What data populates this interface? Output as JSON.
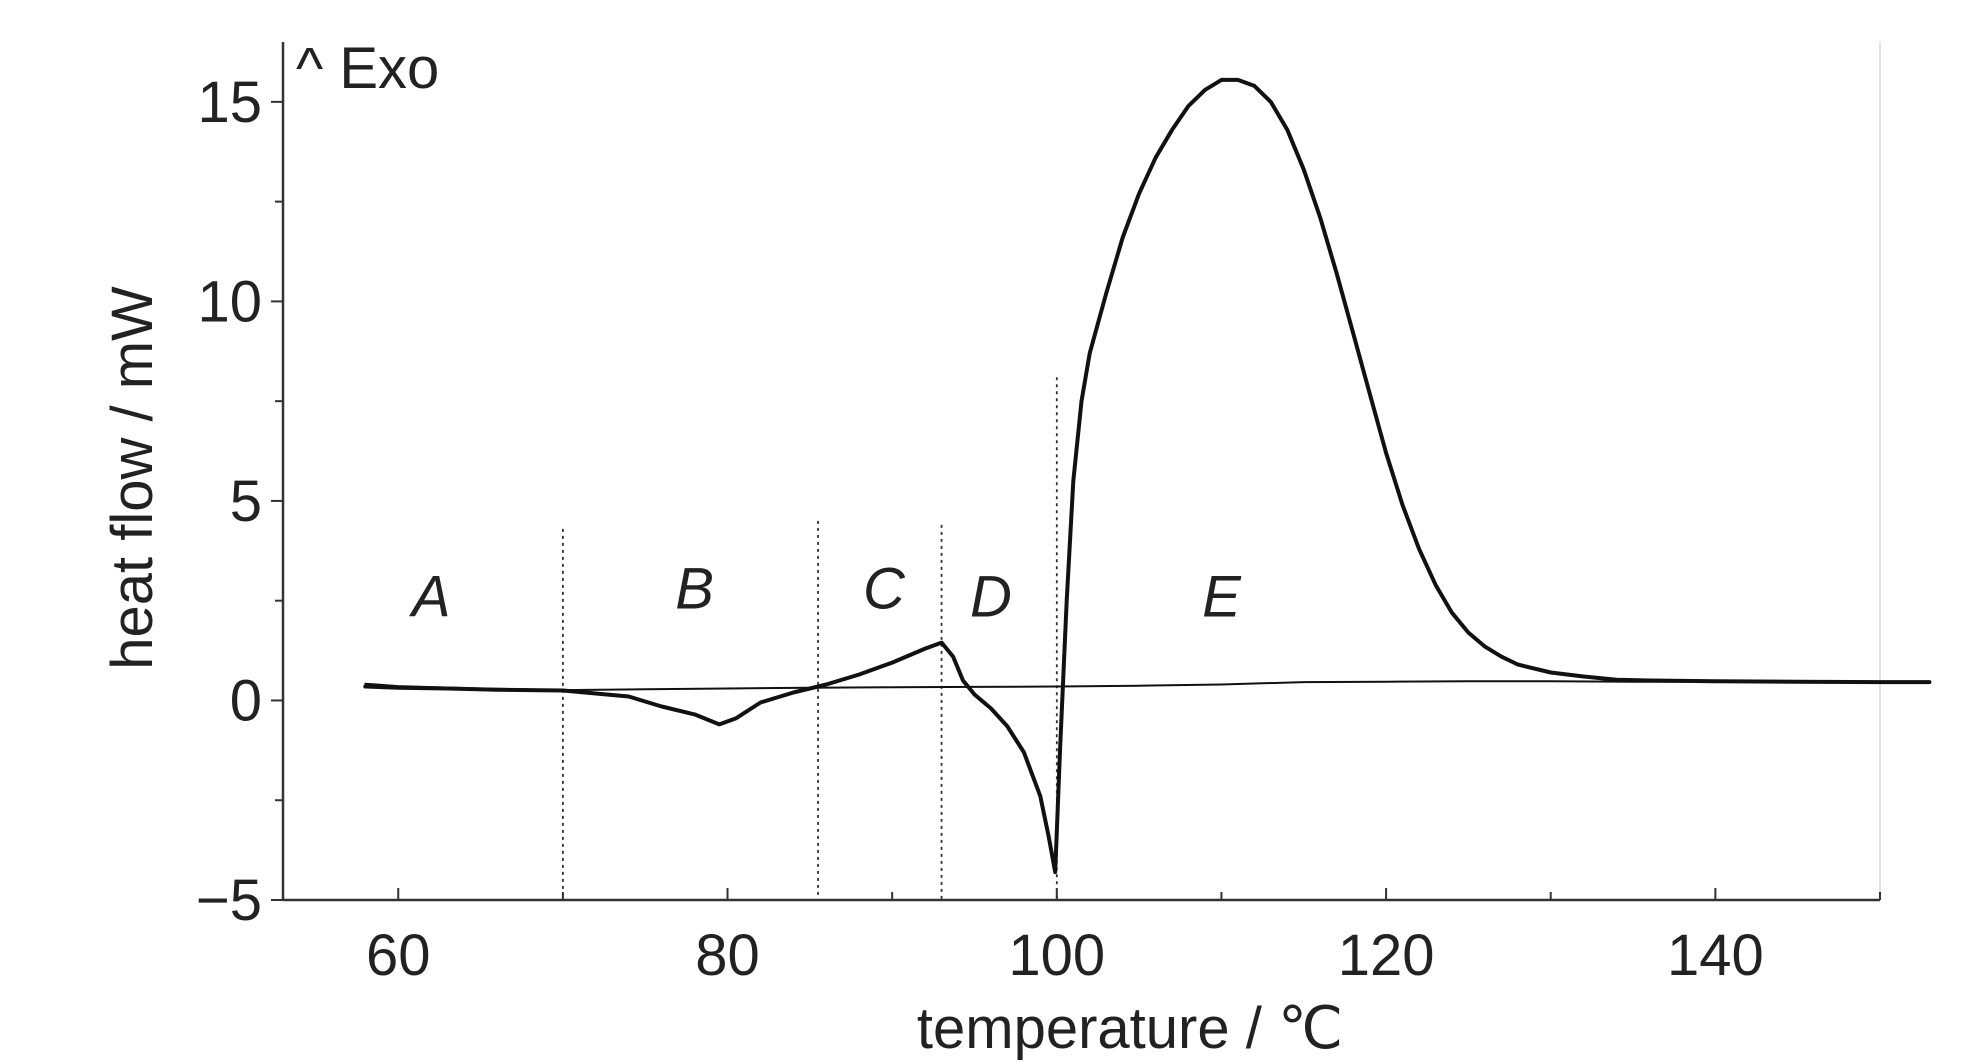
{
  "chart_data": {
    "type": "line",
    "xlabel": "temperature / ℃",
    "ylabel": "heat flow / mW",
    "xlim": [
      53,
      150
    ],
    "ylim": [
      -5,
      16.5
    ],
    "x_ticks": [
      60,
      80,
      100,
      120,
      140
    ],
    "y_ticks": [
      -5,
      0,
      5,
      10,
      15
    ],
    "y_tick_labels": [
      "−5",
      "0",
      "5",
      "10",
      "15"
    ],
    "annotation": "^ Exo",
    "grid": false,
    "series": [
      {
        "x": [
          58,
          60,
          63,
          66,
          70,
          74,
          76,
          78,
          79.5,
          80.5,
          82,
          84,
          86,
          88,
          90,
          92,
          93,
          93.7,
          94.3,
          95,
          96,
          97,
          98,
          99,
          99.5,
          99.9,
          100.2,
          100.6,
          101,
          101.5,
          102,
          103,
          104,
          105,
          106,
          107,
          108,
          109,
          110,
          111,
          112,
          113,
          114,
          115,
          116,
          117,
          118,
          119,
          120,
          121,
          122,
          123,
          124,
          125,
          126,
          127,
          128,
          130,
          132,
          134,
          136,
          140,
          145,
          150,
          153
        ],
        "y": [
          0.35,
          0.32,
          0.3,
          0.27,
          0.25,
          0.1,
          -0.15,
          -0.35,
          -0.6,
          -0.45,
          -0.05,
          0.2,
          0.4,
          0.65,
          0.95,
          1.3,
          1.45,
          1.1,
          0.5,
          0.15,
          -0.2,
          -0.65,
          -1.3,
          -2.4,
          -3.4,
          -4.3,
          -1.2,
          2.5,
          5.5,
          7.5,
          8.7,
          10.2,
          11.6,
          12.7,
          13.6,
          14.3,
          14.9,
          15.3,
          15.55,
          15.55,
          15.4,
          15.0,
          14.3,
          13.3,
          12.1,
          10.7,
          9.2,
          7.7,
          6.2,
          4.9,
          3.8,
          2.9,
          2.2,
          1.7,
          1.35,
          1.1,
          0.9,
          0.7,
          0.6,
          0.52,
          0.5,
          0.48,
          0.47,
          0.46,
          0.46
        ]
      },
      {
        "x": [
          58,
          60,
          65,
          70,
          75,
          80,
          85,
          90,
          95,
          100,
          105,
          110,
          115,
          120,
          125,
          130,
          135,
          140,
          145,
          150,
          153
        ],
        "y": [
          0.42,
          0.36,
          0.3,
          0.26,
          0.28,
          0.3,
          0.32,
          0.33,
          0.34,
          0.35,
          0.37,
          0.4,
          0.46,
          0.47,
          0.48,
          0.48,
          0.47,
          0.47,
          0.47,
          0.46,
          0.46
        ]
      }
    ],
    "region_boundaries": [
      {
        "x": 70,
        "y_top": 4.3
      },
      {
        "x": 85.5,
        "y_top": 4.5
      },
      {
        "x": 93,
        "y_top": 4.4
      },
      {
        "x": 100,
        "y_top": 8.1
      }
    ],
    "region_labels": [
      {
        "text": "A",
        "x": 62,
        "y": 2.1
      },
      {
        "text": "B",
        "x": 78,
        "y": 2.3
      },
      {
        "text": "C",
        "x": 89.5,
        "y": 2.3
      },
      {
        "text": "D",
        "x": 96,
        "y": 2.1
      },
      {
        "text": "E",
        "x": 110,
        "y": 2.1
      }
    ]
  }
}
